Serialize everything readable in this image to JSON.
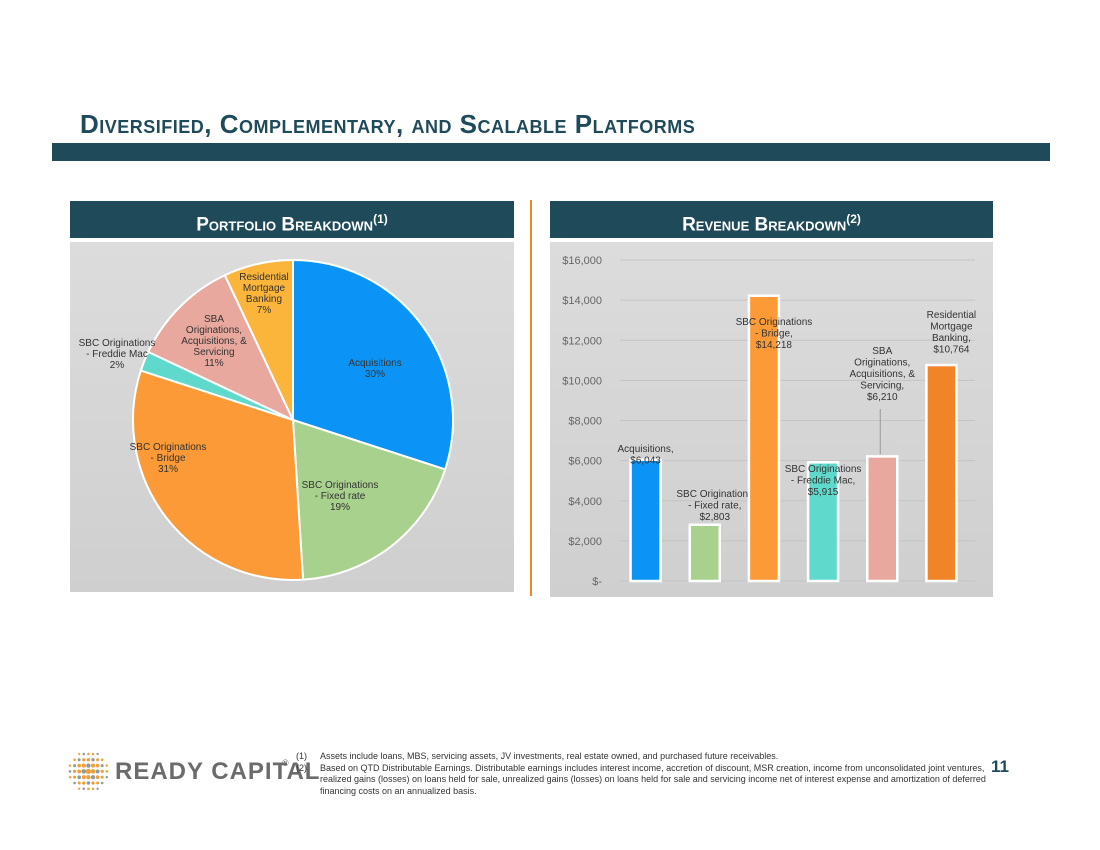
{
  "page": {
    "title": "Diversified, Complementary, and Scalable Platforms",
    "page_number": "11"
  },
  "left_panel": {
    "header": "Portfolio Breakdown",
    "header_sup": "(1)"
  },
  "right_panel": {
    "header": "Revenue Breakdown",
    "header_sup": "(2)"
  },
  "logo": {
    "text": "READY CAPITAL",
    "mark": "®"
  },
  "footnotes": [
    {
      "num": "(1)",
      "text": "Assets include loans, MBS, servicing assets, JV investments, real estate owned, and purchased future receivables."
    },
    {
      "num": "(2)",
      "text": "Based on QTD Distributable Earnings. Distributable earnings includes interest income, accretion of discount, MSR creation, income from unconsolidated joint ventures, realized gains (losses) on loans held for sale, unrealized gains (losses) on loans held for sale and servicing income net of interest expense and amortization of deferred financing costs on an annualized basis."
    }
  ],
  "colors": {
    "brand_navy": "#1f4a5a",
    "accent_orange": "#f08a1e"
  },
  "chart_data": [
    {
      "type": "pie",
      "slices": [
        {
          "label": [
            "Acquisitions"
          ],
          "pct_label": "30%",
          "value": 30,
          "color": "#0b93f5"
        },
        {
          "label": [
            "SBC Originations",
            "- Fixed rate"
          ],
          "pct_label": "19%",
          "value": 19,
          "color": "#a9d18e"
        },
        {
          "label": [
            "SBC Originations",
            "- Bridge"
          ],
          "pct_label": "31%",
          "value": 31,
          "color": "#fb9a37"
        },
        {
          "label": [
            "SBC Originations",
            "- Freddie Mac"
          ],
          "pct_label": "2%",
          "value": 2,
          "color": "#5ed9cc"
        },
        {
          "label": [
            "SBA",
            "Originations,",
            "Acquisitions, &",
            "Servicing"
          ],
          "pct_label": "11%",
          "value": 11,
          "color": "#e8a89e"
        },
        {
          "label": [
            "Residential",
            "Mortgage",
            "Banking"
          ],
          "pct_label": "7%",
          "value": 7,
          "color": "#fbb53a"
        }
      ]
    },
    {
      "type": "bar",
      "y_ticks": [
        "$-",
        "$2,000",
        "$4,000",
        "$6,000",
        "$8,000",
        "$10,000",
        "$12,000",
        "$14,000",
        "$16,000"
      ],
      "ylim": [
        0,
        16000
      ],
      "bars": [
        {
          "label": [
            "Acquisitions,",
            "$6,043"
          ],
          "value": 6043,
          "color": "#0b93f5"
        },
        {
          "label": [
            "SBC Originations",
            "- Fixed rate,",
            "$2,803"
          ],
          "value": 2803,
          "color": "#a9d18e"
        },
        {
          "label": [
            "SBC Originations",
            "- Bridge,",
            "$14,218"
          ],
          "value": 14218,
          "color": "#fb9a37"
        },
        {
          "label": [
            "SBC Originations",
            "- Freddie Mac,",
            "$5,915"
          ],
          "value": 5915,
          "color": "#5ed9cc"
        },
        {
          "label": [
            "SBA",
            "Originations,",
            "Acquisitions, &",
            "Servicing,",
            "$6,210"
          ],
          "value": 6210,
          "color": "#e8a89e"
        },
        {
          "label": [
            "Residential",
            "Mortgage",
            "Banking,",
            "$10,764"
          ],
          "value": 10764,
          "color": "#f28428"
        }
      ]
    }
  ]
}
